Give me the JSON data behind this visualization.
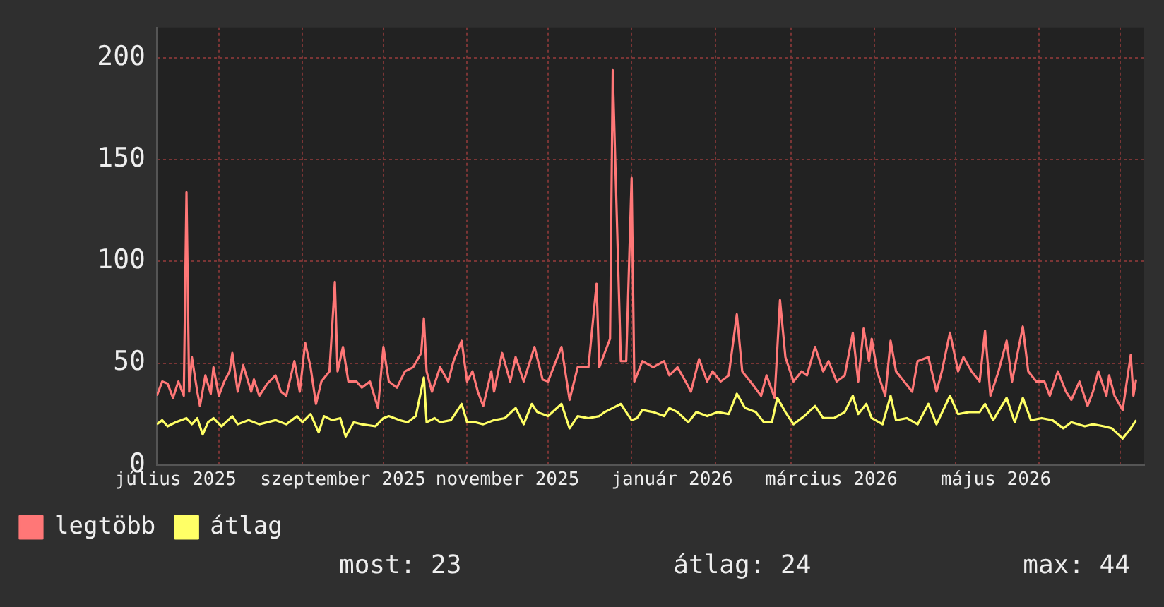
{
  "chart_data": {
    "type": "line",
    "xlim": [
      "2025-07-09",
      "2026-07-10"
    ],
    "xticks": [
      {
        "value": "2025-07-16",
        "label": "július 2025"
      },
      {
        "value": "2025-08-01",
        "label": null
      },
      {
        "value": "2025-09-01",
        "label": null
      },
      {
        "value": "2025-09-16",
        "label": "szeptember 2025"
      },
      {
        "value": "2025-10-01",
        "label": null
      },
      {
        "value": "2025-11-01",
        "label": null
      },
      {
        "value": "2025-11-16",
        "label": "november 2025"
      },
      {
        "value": "2025-12-01",
        "label": null
      },
      {
        "value": "2026-01-01",
        "label": null
      },
      {
        "value": "2026-01-16",
        "label": "január 2026"
      },
      {
        "value": "2026-02-01",
        "label": null
      },
      {
        "value": "2026-03-01",
        "label": null
      },
      {
        "value": "2026-03-16",
        "label": "március 2026"
      },
      {
        "value": "2026-04-01",
        "label": null
      },
      {
        "value": "2026-05-01",
        "label": null
      },
      {
        "value": "2026-05-16",
        "label": "május 2026"
      },
      {
        "value": "2026-06-01",
        "label": null
      },
      {
        "value": "2026-07-01",
        "label": null
      }
    ],
    "ylim": [
      0,
      215
    ],
    "yticks": [
      0,
      50,
      100,
      150,
      200
    ],
    "grid": true,
    "legend": "bottom left",
    "annotations": [
      "most: 23",
      "átlag: 24",
      "max: 44"
    ],
    "series": [
      {
        "name": "legtöbb",
        "color": "#ff7777",
        "x": [
          "2025-07-09",
          "2025-07-11",
          "2025-07-13",
          "2025-07-15",
          "2025-07-17",
          "2025-07-19",
          "2025-07-20",
          "2025-07-21",
          "2025-07-22",
          "2025-07-24",
          "2025-07-25",
          "2025-07-27",
          "2025-07-29",
          "2025-07-30",
          "2025-08-01",
          "2025-08-03",
          "2025-08-05",
          "2025-08-06",
          "2025-08-08",
          "2025-08-10",
          "2025-08-13",
          "2025-08-14",
          "2025-08-16",
          "2025-08-19",
          "2025-08-22",
          "2025-08-24",
          "2025-08-26",
          "2025-08-29",
          "2025-08-31",
          "2025-09-02",
          "2025-09-04",
          "2025-09-06",
          "2025-09-08",
          "2025-09-11",
          "2025-09-13",
          "2025-09-14",
          "2025-09-16",
          "2025-09-18",
          "2025-09-21",
          "2025-09-23",
          "2025-09-26",
          "2025-09-29",
          "2025-10-01",
          "2025-10-03",
          "2025-10-06",
          "2025-10-09",
          "2025-10-12",
          "2025-10-15",
          "2025-10-16",
          "2025-10-17",
          "2025-10-19",
          "2025-10-22",
          "2025-10-25",
          "2025-10-27",
          "2025-10-30",
          "2025-11-01",
          "2025-11-03",
          "2025-11-05",
          "2025-11-07",
          "2025-11-10",
          "2025-11-11",
          "2025-11-14",
          "2025-11-17",
          "2025-11-19",
          "2025-11-22",
          "2025-11-26",
          "2025-11-29",
          "2025-12-01",
          "2025-12-06",
          "2025-12-09",
          "2025-12-12",
          "2025-12-16",
          "2025-12-19",
          "2025-12-20",
          "2025-12-24",
          "2025-12-25",
          "2025-12-28",
          "2025-12-30",
          "2026-01-01",
          "2026-01-02",
          "2026-01-05",
          "2026-01-09",
          "2026-01-13",
          "2026-01-15",
          "2026-01-18",
          "2026-01-21",
          "2026-01-23",
          "2026-01-26",
          "2026-01-29",
          "2026-01-31",
          "2026-02-03",
          "2026-02-06",
          "2026-02-09",
          "2026-02-11",
          "2026-02-14",
          "2026-02-18",
          "2026-02-20",
          "2026-02-23",
          "2026-02-25",
          "2026-02-27",
          "2026-03-02",
          "2026-03-05",
          "2026-03-07",
          "2026-03-10",
          "2026-03-13",
          "2026-03-15",
          "2026-03-18",
          "2026-03-21",
          "2026-03-24",
          "2026-03-26",
          "2026-03-28",
          "2026-03-30",
          "2026-03-31",
          "2026-04-02",
          "2026-04-05",
          "2026-04-07",
          "2026-04-09",
          "2026-04-12",
          "2026-04-15",
          "2026-04-17",
          "2026-04-21",
          "2026-04-24",
          "2026-04-26",
          "2026-04-29",
          "2026-05-02",
          "2026-05-04",
          "2026-05-07",
          "2026-05-10",
          "2026-05-12",
          "2026-05-14",
          "2026-05-17",
          "2026-05-20",
          "2026-05-22",
          "2026-05-26",
          "2026-05-28",
          "2026-05-31",
          "2026-06-03",
          "2026-06-05",
          "2026-06-08",
          "2026-06-11",
          "2026-06-13",
          "2026-06-16",
          "2026-06-19",
          "2026-06-21",
          "2026-06-23",
          "2026-06-26",
          "2026-06-27",
          "2026-06-29",
          "2026-07-02",
          "2026-07-05",
          "2026-07-06",
          "2026-07-07"
        ],
        "values": [
          34,
          41,
          40,
          33,
          41,
          34,
          134,
          36,
          53,
          36,
          29,
          44,
          35,
          48,
          34,
          41,
          46,
          55,
          36,
          49,
          36,
          42,
          34,
          40,
          44,
          36,
          34,
          51,
          36,
          60,
          48,
          30,
          41,
          46,
          90,
          46,
          58,
          41,
          41,
          38,
          41,
          28,
          58,
          41,
          38,
          46,
          48,
          55,
          72,
          46,
          36,
          48,
          41,
          51,
          61,
          41,
          46,
          36,
          29,
          46,
          36,
          55,
          41,
          53,
          41,
          58,
          42,
          41,
          58,
          32,
          48,
          48,
          89,
          48,
          62,
          194,
          51,
          51,
          141,
          41,
          51,
          48,
          51,
          44,
          48,
          41,
          36,
          52,
          41,
          46,
          41,
          44,
          74,
          46,
          41,
          34,
          44,
          33,
          81,
          53,
          41,
          46,
          44,
          58,
          46,
          51,
          41,
          44,
          65,
          41,
          67,
          51,
          62,
          46,
          34,
          61,
          46,
          41,
          36,
          51,
          53,
          36,
          46,
          65,
          46,
          53,
          46,
          41,
          66,
          34,
          46,
          61,
          41,
          68,
          46,
          41,
          41,
          34,
          46,
          36,
          32,
          41,
          29,
          36,
          46,
          34,
          44,
          34,
          27,
          54,
          34,
          42
        ]
      },
      {
        "name": "átlag",
        "color": "#ffff66",
        "x": [
          "2025-07-09",
          "2025-07-11",
          "2025-07-13",
          "2025-07-16",
          "2025-07-20",
          "2025-07-22",
          "2025-07-24",
          "2025-07-26",
          "2025-07-28",
          "2025-07-30",
          "2025-08-02",
          "2025-08-06",
          "2025-08-08",
          "2025-08-12",
          "2025-08-16",
          "2025-08-22",
          "2025-08-26",
          "2025-08-30",
          "2025-09-01",
          "2025-09-04",
          "2025-09-07",
          "2025-09-09",
          "2025-09-12",
          "2025-09-15",
          "2025-09-17",
          "2025-09-20",
          "2025-09-23",
          "2025-09-28",
          "2025-10-01",
          "2025-10-03",
          "2025-10-07",
          "2025-10-10",
          "2025-10-13",
          "2025-10-16",
          "2025-10-17",
          "2025-10-20",
          "2025-10-22",
          "2025-10-26",
          "2025-10-30",
          "2025-11-01",
          "2025-11-04",
          "2025-11-07",
          "2025-11-11",
          "2025-11-15",
          "2025-11-19",
          "2025-11-22",
          "2025-11-25",
          "2025-11-27",
          "2025-12-01",
          "2025-12-06",
          "2025-12-09",
          "2025-12-12",
          "2025-12-16",
          "2025-12-20",
          "2025-12-22",
          "2025-12-25",
          "2025-12-28",
          "2026-01-01",
          "2026-01-03",
          "2026-01-05",
          "2026-01-09",
          "2026-01-13",
          "2026-01-15",
          "2026-01-18",
          "2026-01-22",
          "2026-01-25",
          "2026-01-29",
          "2026-02-02",
          "2026-02-06",
          "2026-02-09",
          "2026-02-12",
          "2026-02-16",
          "2026-02-19",
          "2026-02-22",
          "2026-02-24",
          "2026-02-27",
          "2026-03-02",
          "2026-03-06",
          "2026-03-10",
          "2026-03-13",
          "2026-03-17",
          "2026-03-21",
          "2026-03-24",
          "2026-03-26",
          "2026-03-29",
          "2026-03-31",
          "2026-04-04",
          "2026-04-07",
          "2026-04-09",
          "2026-04-13",
          "2026-04-17",
          "2026-04-21",
          "2026-04-24",
          "2026-04-29",
          "2026-05-02",
          "2026-05-06",
          "2026-05-10",
          "2026-05-12",
          "2026-05-15",
          "2026-05-20",
          "2026-05-23",
          "2026-05-26",
          "2026-05-29",
          "2026-06-02",
          "2026-06-06",
          "2026-06-10",
          "2026-06-13",
          "2026-06-18",
          "2026-06-21",
          "2026-06-25",
          "2026-06-28",
          "2026-07-02",
          "2026-07-05",
          "2026-07-07"
        ],
        "values": [
          20,
          22,
          19,
          21,
          23,
          20,
          23,
          15,
          21,
          23,
          19,
          24,
          20,
          22,
          20,
          22,
          20,
          24,
          21,
          25,
          16,
          24,
          22,
          23,
          14,
          21,
          20,
          19,
          23,
          24,
          22,
          21,
          24,
          43,
          21,
          23,
          21,
          22,
          30,
          21,
          21,
          20,
          22,
          23,
          28,
          20,
          30,
          26,
          24,
          30,
          18,
          24,
          23,
          24,
          26,
          28,
          30,
          22,
          23,
          27,
          26,
          24,
          28,
          26,
          21,
          26,
          24,
          26,
          25,
          35,
          28,
          26,
          21,
          21,
          33,
          26,
          20,
          24,
          29,
          23,
          23,
          26,
          34,
          25,
          30,
          23,
          20,
          34,
          22,
          23,
          20,
          30,
          20,
          34,
          25,
          26,
          26,
          30,
          22,
          33,
          21,
          33,
          22,
          23,
          22,
          18,
          21,
          19,
          20,
          19,
          18,
          13,
          18,
          22
        ]
      }
    ]
  }
}
